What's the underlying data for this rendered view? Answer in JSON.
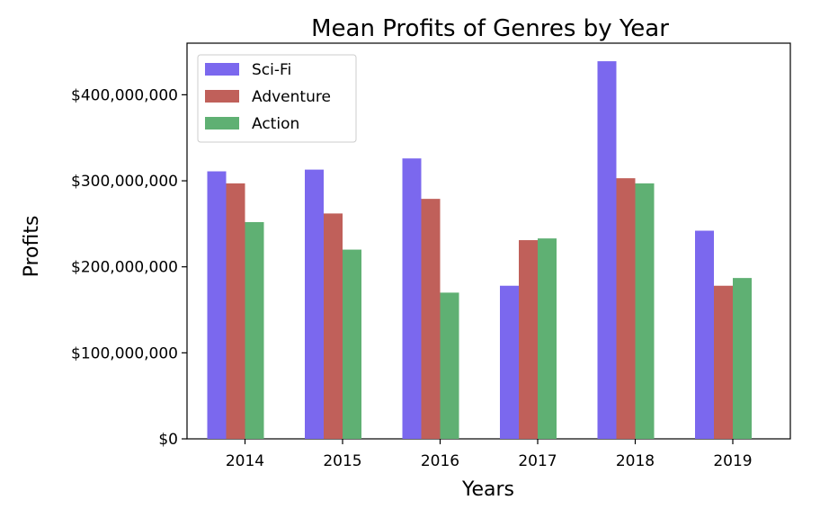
{
  "chart_data": {
    "type": "bar",
    "title": "Mean Profits of Genres by Year",
    "xlabel": "Years",
    "ylabel": "Profits",
    "categories": [
      "2014",
      "2015",
      "2016",
      "2017",
      "2018",
      "2019"
    ],
    "series": [
      {
        "name": "Sci-Fi",
        "color": "#7b68ee",
        "values": [
          311000000,
          313000000,
          326000000,
          178000000,
          439000000,
          242000000
        ]
      },
      {
        "name": "Adventure",
        "color": "#c0605a",
        "values": [
          297000000,
          262000000,
          279000000,
          231000000,
          303000000,
          178000000
        ]
      },
      {
        "name": "Action",
        "color": "#5fb073",
        "values": [
          252000000,
          220000000,
          170000000,
          233000000,
          297000000,
          187000000
        ]
      }
    ],
    "ylim": [
      0,
      460000000
    ],
    "yticks": [
      0,
      100000000,
      200000000,
      300000000,
      400000000
    ],
    "ytick_labels": [
      "$0",
      "$100,000,000",
      "$200,000,000",
      "$300,000,000",
      "$400,000,000"
    ],
    "grid": false,
    "legend": "top-left"
  }
}
